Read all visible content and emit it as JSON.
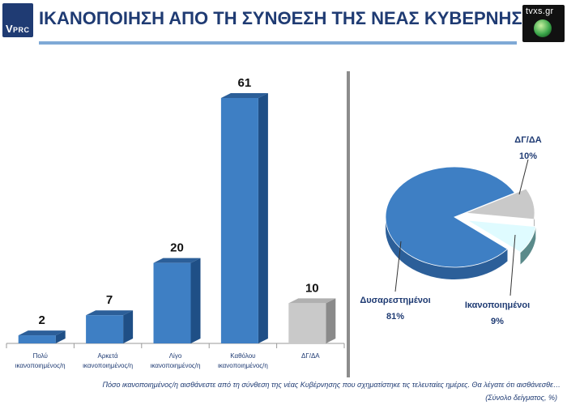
{
  "header": {
    "title": "ΙΚΑΝΟΠΟΙΗΣΗ ΑΠΟ ΤΗ ΣΥΝΘΕΣΗ ΤΗΣ ΝΕΑΣ ΚΥΒΕΡΝΗΣΗΣ",
    "logo_left_v": "V",
    "logo_left_text": "PRC",
    "logo_right_text": "tvxs.gr"
  },
  "footer": {
    "question": "Πόσο ικανοποιημένος/η αισθάνεστε από τη σύνθεση της νέας Κυβέρνησης που σχηματίστηκε τις τελευταίες ημέρες. Θα λέγατε ότι αισθάνεσθε…",
    "note": "(Σύνολο δείγματος,  %)"
  },
  "colors": {
    "bar": "#3e7fc4",
    "bar_dark": "#1f4f86",
    "gray": "#c9c9c9",
    "gray_dark": "#8a8a8a",
    "light": "#dffbff",
    "title": "#1f3b73"
  },
  "chart_data": [
    {
      "type": "bar",
      "categories": [
        [
          "Πολύ",
          "ικανοποιημένος/η"
        ],
        [
          "Αρκετά",
          "ικανοποιημένος/η"
        ],
        [
          "Λίγο",
          "ικανοποιημένος/η"
        ],
        [
          "Καθόλου",
          "ικανοποιημένος/η"
        ],
        [
          "ΔΓ/ΔΑ"
        ]
      ],
      "values": [
        2,
        7,
        20,
        61,
        10
      ],
      "value_labels": [
        "2",
        "7",
        "20",
        "61",
        "10"
      ],
      "ylim": [
        0,
        65
      ],
      "grid": false
    },
    {
      "type": "pie",
      "slices": [
        {
          "label": "Δυσαρεστημένοι",
          "value": 81,
          "value_label": "81%"
        },
        {
          "label": "Ικανοποιημένοι",
          "value": 9,
          "value_label": "9%"
        },
        {
          "label": "ΔΓ/ΔΑ",
          "value": 10,
          "value_label": "10%"
        }
      ]
    }
  ]
}
